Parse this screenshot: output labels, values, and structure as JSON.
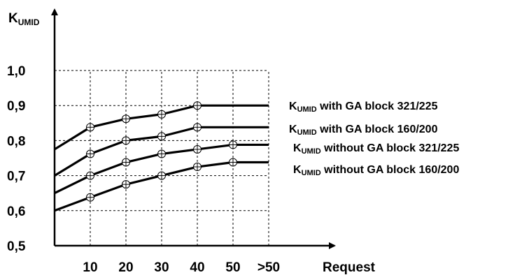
{
  "chart_data": {
    "type": "line",
    "xlabel": "Request",
    "ylabel": {
      "main": "K",
      "sub": "UMID"
    },
    "categories": [
      "10",
      "20",
      "30",
      "40",
      "50",
      ">50"
    ],
    "y_ticks": [
      "0,5",
      "0,6",
      "0,7",
      "0,8",
      "0,9",
      "1,0"
    ],
    "ylim": [
      0.5,
      1.0
    ],
    "grid": true,
    "legend_placement": "right",
    "series": [
      {
        "name": "with GA block 321/225",
        "legend_main": "K",
        "legend_sub": "UMID",
        "legend_rest": " with GA block 321/225",
        "values": [
          0.838,
          0.862,
          0.875,
          0.9,
          0.9,
          0.9
        ],
        "marked": [
          true,
          true,
          true,
          true,
          false,
          false
        ],
        "start_value": 0.775
      },
      {
        "name": "with GA block 160/200",
        "legend_main": "K",
        "legend_sub": "UMID",
        "legend_rest": " with GA block 160/200",
        "values": [
          0.762,
          0.8,
          0.812,
          0.838,
          0.838,
          0.838
        ],
        "marked": [
          true,
          true,
          true,
          true,
          false,
          false
        ],
        "start_value": 0.7
      },
      {
        "name": "without GA block 321/225",
        "legend_main": "K",
        "legend_sub": "UMID",
        "legend_rest": " without GA block 321/225",
        "values": [
          0.7,
          0.738,
          0.762,
          0.775,
          0.788,
          0.788
        ],
        "marked": [
          true,
          true,
          true,
          true,
          true,
          false
        ],
        "start_value": 0.65
      },
      {
        "name": "without GA block 160/200",
        "legend_main": "K",
        "legend_sub": "UMID",
        "legend_rest": " without GA block 160/200",
        "values": [
          0.638,
          0.675,
          0.7,
          0.725,
          0.738,
          0.738
        ],
        "marked": [
          true,
          true,
          true,
          true,
          true,
          false
        ],
        "start_value": 0.6
      }
    ]
  }
}
